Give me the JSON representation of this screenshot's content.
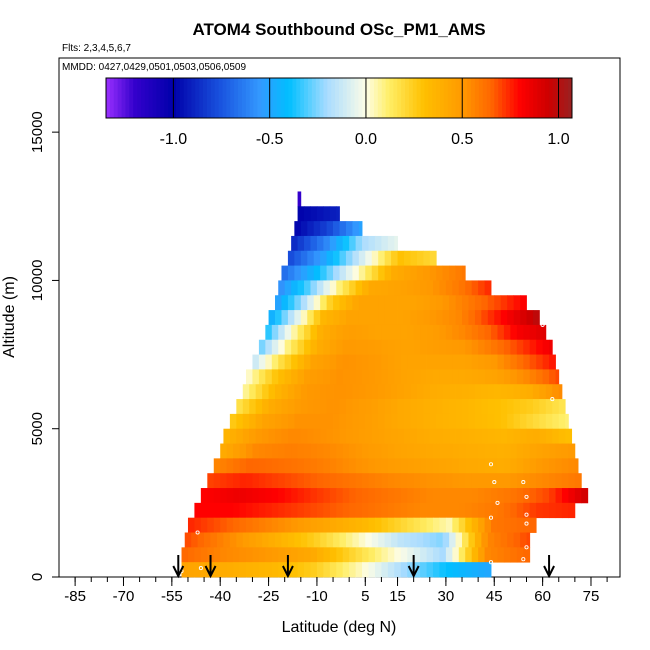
{
  "chart_data": {
    "type": "heatmap",
    "title": "ATOM4 Southbound OSc_PM1_AMS",
    "flights_note": "Flts: 2,3,4,5,6,7",
    "dates_note": "MMDD: 0427,0429,0501,0503,0506,0509",
    "xlabel": "Latitude (deg N)",
    "ylabel": "Altitude (m)",
    "xlim": [
      -90,
      84
    ],
    "ylim": [
      0,
      17500
    ],
    "x_ticks": [
      -85,
      -70,
      -55,
      -40,
      -25,
      -10,
      5,
      15,
      30,
      45,
      60,
      75
    ],
    "x_tick_labels": [
      "-85",
      "-70",
      "-55",
      "-40",
      "-25",
      "-10",
      "5",
      "15",
      "30",
      "45",
      "60",
      "75"
    ],
    "x_minor_tick_step": 5,
    "y_ticks": [
      0,
      5000,
      10000,
      15000
    ],
    "y_tick_labels": [
      "0",
      "5000",
      "10000",
      "15000"
    ],
    "colorbar": {
      "min": -1.35,
      "max": 1.07,
      "ticks": [
        -1.0,
        -0.5,
        0.0,
        0.5,
        1.0
      ],
      "tick_labels": [
        "-1.0",
        "-0.5",
        "0.0",
        "0.5",
        "1.0"
      ],
      "stops": [
        {
          "v": -1.35,
          "c": "#9b30ff"
        },
        {
          "v": -1.2,
          "c": "#3300cc"
        },
        {
          "v": -1.0,
          "c": "#0000aa"
        },
        {
          "v": -0.75,
          "c": "#1a55e0"
        },
        {
          "v": -0.55,
          "c": "#3399ff"
        },
        {
          "v": -0.4,
          "c": "#00bfff"
        },
        {
          "v": -0.2,
          "c": "#aadcff"
        },
        {
          "v": 0.0,
          "c": "#fdfde6"
        },
        {
          "v": 0.12,
          "c": "#ffee66"
        },
        {
          "v": 0.3,
          "c": "#ffc000"
        },
        {
          "v": 0.5,
          "c": "#ff9900"
        },
        {
          "v": 0.65,
          "c": "#ff6600"
        },
        {
          "v": 0.8,
          "c": "#ff0000"
        },
        {
          "v": 0.95,
          "c": "#cc0000"
        },
        {
          "v": 1.07,
          "c": "#992222"
        }
      ]
    },
    "profile_arrows_lat": [
      -53,
      -43,
      -19,
      20,
      62
    ],
    "altitude_rows": [
      {
        "alt": 12500,
        "lat_start": -16,
        "lat_end": -15,
        "values": [
          -1.2
        ]
      },
      {
        "alt": 12000,
        "lat_start": -16,
        "lat_end": -3,
        "values": [
          -1.0,
          -0.9
        ]
      },
      {
        "alt": 11500,
        "lat_start": -17,
        "lat_end": 4,
        "values": [
          -1.0,
          -0.8,
          -0.5
        ]
      },
      {
        "alt": 11000,
        "lat_start": -18,
        "lat_end": 15,
        "values": [
          -0.9,
          -0.6,
          -0.2,
          -0.05
        ]
      },
      {
        "alt": 10500,
        "lat_start": -19,
        "lat_end": 27,
        "values": [
          -0.8,
          -0.5,
          -0.1,
          0.3,
          0.2
        ]
      },
      {
        "alt": 10000,
        "lat_start": -21,
        "lat_end": 36,
        "values": [
          -0.7,
          -0.4,
          0.0,
          0.4,
          0.5,
          0.6
        ]
      },
      {
        "alt": 9500,
        "lat_start": -22,
        "lat_end": 44,
        "values": [
          -0.6,
          -0.3,
          0.1,
          0.42,
          0.45,
          0.5,
          0.6,
          0.75
        ]
      },
      {
        "alt": 9000,
        "lat_start": -23,
        "lat_end": 55,
        "values": [
          -0.55,
          -0.2,
          0.25,
          0.45,
          0.45,
          0.45,
          0.5,
          0.6,
          0.7,
          0.82
        ]
      },
      {
        "alt": 8500,
        "lat_start": -25,
        "lat_end": 59,
        "values": [
          -0.5,
          -0.1,
          0.35,
          0.45,
          0.45,
          0.45,
          0.5,
          0.55,
          0.7,
          0.85,
          1.0
        ]
      },
      {
        "alt": 8000,
        "lat_start": -26,
        "lat_end": 61,
        "values": [
          -0.4,
          0.05,
          0.4,
          0.48,
          0.45,
          0.45,
          0.48,
          0.55,
          0.65,
          0.82,
          0.9
        ]
      },
      {
        "alt": 7500,
        "lat_start": -28,
        "lat_end": 63,
        "values": [
          -0.3,
          0.1,
          0.4,
          0.5,
          0.48,
          0.45,
          0.48,
          0.5,
          0.6,
          0.72,
          0.85
        ]
      },
      {
        "alt": 7000,
        "lat_start": -30,
        "lat_end": 64,
        "values": [
          -0.15,
          0.2,
          0.45,
          0.52,
          0.5,
          0.45,
          0.45,
          0.45,
          0.5,
          0.65,
          0.78
        ]
      },
      {
        "alt": 6500,
        "lat_start": -32,
        "lat_end": 65,
        "values": [
          0.0,
          0.3,
          0.48,
          0.52,
          0.5,
          0.45,
          0.42,
          0.42,
          0.45,
          0.55,
          0.7
        ]
      },
      {
        "alt": 6000,
        "lat_start": -33,
        "lat_end": 66,
        "values": [
          0.05,
          0.35,
          0.5,
          0.52,
          0.5,
          0.45,
          0.4,
          0.38,
          0.35,
          0.4,
          0.55
        ]
      },
      {
        "alt": 5500,
        "lat_start": -35,
        "lat_end": 67,
        "values": [
          0.15,
          0.4,
          0.5,
          0.52,
          0.48,
          0.42,
          0.38,
          0.35,
          0.3,
          0.25,
          0.15
        ]
      },
      {
        "alt": 5000,
        "lat_start": -37,
        "lat_end": 68,
        "values": [
          0.25,
          0.45,
          0.52,
          0.52,
          0.48,
          0.42,
          0.38,
          0.35,
          0.3,
          0.2,
          0.1
        ]
      },
      {
        "alt": 4500,
        "lat_start": -39,
        "lat_end": 69,
        "values": [
          0.35,
          0.5,
          0.55,
          0.52,
          0.48,
          0.44,
          0.4,
          0.38,
          0.35,
          0.4,
          0.3
        ]
      },
      {
        "alt": 4000,
        "lat_start": -40,
        "lat_end": 70,
        "values": [
          0.4,
          0.55,
          0.58,
          0.55,
          0.5,
          0.45,
          0.42,
          0.4,
          0.38,
          0.45,
          0.5
        ]
      },
      {
        "alt": 3500,
        "lat_start": -42,
        "lat_end": 71,
        "values": [
          0.55,
          0.65,
          0.62,
          0.58,
          0.52,
          0.48,
          0.45,
          0.42,
          0.4,
          0.5,
          0.55
        ]
      },
      {
        "alt": 3000,
        "lat_start": -44,
        "lat_end": 72,
        "values": [
          0.7,
          0.75,
          0.7,
          0.65,
          0.6,
          0.55,
          0.52,
          0.5,
          0.5,
          0.55,
          0.6
        ]
      },
      {
        "alt": 2500,
        "lat_start": -46,
        "lat_end": 74,
        "values": [
          0.8,
          0.85,
          0.8,
          0.72,
          0.65,
          0.6,
          0.55,
          0.55,
          0.6,
          0.7,
          0.95
        ]
      },
      {
        "alt": 2000,
        "lat_start": -48,
        "lat_end": 70,
        "values": [
          0.8,
          0.8,
          0.75,
          0.7,
          0.65,
          0.6,
          0.55,
          0.55,
          0.6,
          0.72,
          0.75
        ]
      },
      {
        "alt": 1500,
        "lat_start": -50,
        "lat_end": 58,
        "values": [
          0.75,
          0.65,
          0.55,
          0.45,
          0.35,
          0.2,
          0.05,
          0.6,
          0.65
        ]
      },
      {
        "alt": 1000,
        "lat_start": -51,
        "lat_end": 56,
        "values": [
          0.7,
          0.55,
          0.4,
          0.25,
          0.05,
          -0.15,
          -0.25,
          0.55,
          0.7
        ]
      },
      {
        "alt": 500,
        "lat_start": -52,
        "lat_end": 56,
        "values": [
          0.65,
          0.55,
          0.5,
          0.42,
          0.2,
          0.0,
          -0.2,
          0.55,
          0.65
        ]
      },
      {
        "alt": 0,
        "lat_start": -52,
        "lat_end": 44,
        "values": [
          0.45,
          0.4,
          0.35,
          0.25,
          0.05,
          -0.2,
          -0.4,
          -0.5
        ]
      }
    ]
  }
}
